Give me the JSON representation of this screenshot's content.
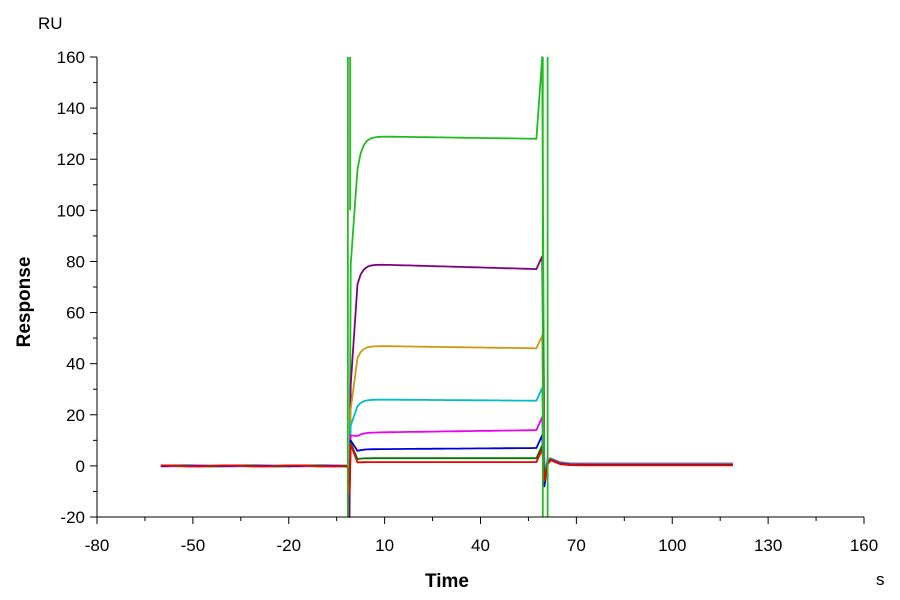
{
  "chart_data": {
    "type": "line",
    "title": "",
    "xlabel": "Time",
    "ylabel": "Response",
    "x_unit": "s",
    "y_unit": "RU",
    "xlim": [
      -80,
      160
    ],
    "ylim": [
      -20,
      160
    ],
    "x_ticks": [
      -80,
      -50,
      -20,
      10,
      40,
      70,
      100,
      130,
      160
    ],
    "y_ticks": [
      -20,
      0,
      20,
      40,
      60,
      80,
      100,
      120,
      140,
      160
    ],
    "grid": false,
    "legend": "none",
    "injection_start": -1,
    "injection_end": 59,
    "series": [
      {
        "color": "#22bb22",
        "plateau_start": 129,
        "plateau_end": 128,
        "dissociation": 0.5,
        "z": 0
      },
      {
        "color": "#800080",
        "plateau_start": 79,
        "plateau_end": 77,
        "dissociation": 0.8,
        "z": 1
      },
      {
        "color": "#cc9910",
        "plateau_start": 47,
        "plateau_end": 46,
        "dissociation": 1.0,
        "z": 2
      },
      {
        "color": "#00bcc8",
        "plateau_start": 26,
        "plateau_end": 25.5,
        "dissociation": 0.8,
        "z": 3
      },
      {
        "color": "#ee00ee",
        "plateau_start": 13,
        "plateau_end": 14,
        "dissociation": 0.6,
        "z": 4
      },
      {
        "color": "#0000dd",
        "plateau_start": 6.5,
        "plateau_end": 7,
        "dissociation": 0.4,
        "z": 5
      },
      {
        "color": "#007700",
        "plateau_start": 3,
        "plateau_end": 3,
        "dissociation": 0.3,
        "z": 6
      },
      {
        "color": "#ee0000",
        "plateau_start": 1.5,
        "plateau_end": 1.5,
        "dissociation": 0.2,
        "z": 7
      }
    ]
  }
}
